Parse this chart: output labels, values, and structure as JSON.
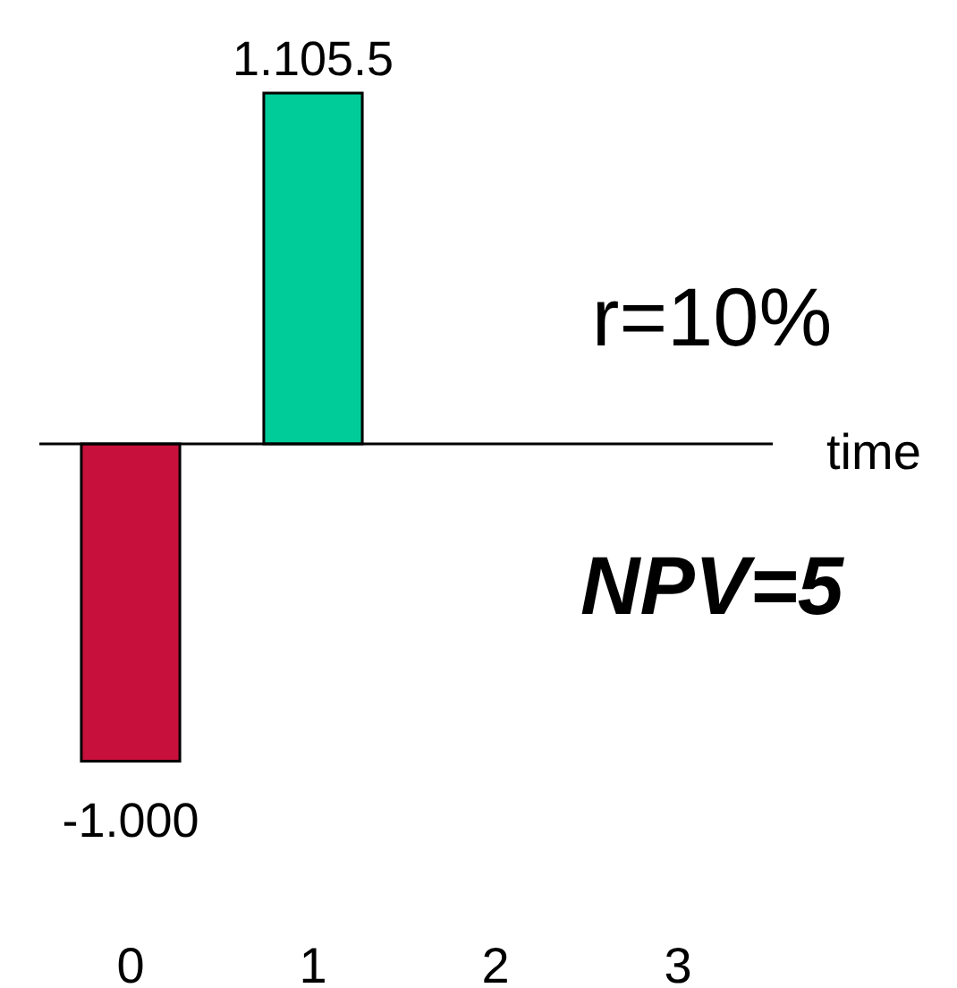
{
  "chart_data": {
    "type": "bar",
    "xlabel": "time",
    "categories": [
      "0",
      "1",
      "2",
      "3"
    ],
    "values": [
      -1000,
      1105.5,
      null,
      null
    ],
    "colors": [
      "#c8103c",
      "#00cc99",
      null,
      null
    ],
    "value_labels": [
      "-1.000",
      "1.105.5",
      null,
      null
    ],
    "annotations": [
      "r=10%",
      "NPV=5"
    ]
  }
}
